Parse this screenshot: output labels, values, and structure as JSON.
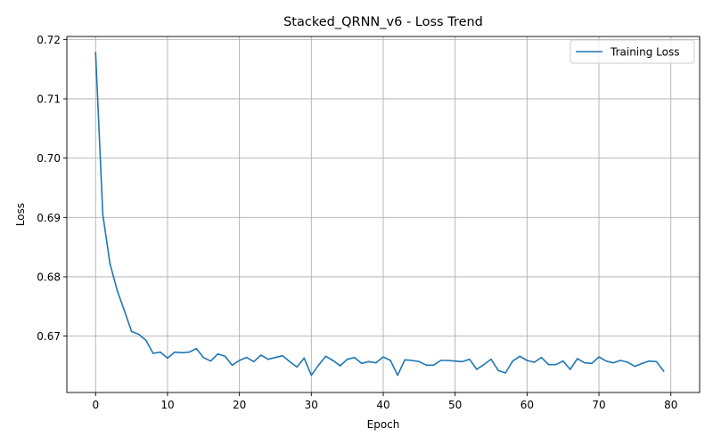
{
  "chart_data": {
    "type": "line",
    "title": "Stacked_QRNN_v6 - Loss Trend",
    "xlabel": "Epoch",
    "ylabel": "Loss",
    "xlim": [
      -4,
      84
    ],
    "ylim": [
      0.6605,
      0.7205
    ],
    "xticks": [
      0,
      10,
      20,
      30,
      40,
      50,
      60,
      70,
      80
    ],
    "xtick_labels": [
      "0",
      "10",
      "20",
      "30",
      "40",
      "50",
      "60",
      "70",
      "80"
    ],
    "yticks": [
      0.67,
      0.68,
      0.69,
      0.7,
      0.71,
      0.72
    ],
    "ytick_labels": [
      "0.67",
      "0.68",
      "0.69",
      "0.70",
      "0.71",
      "0.72"
    ],
    "grid": true,
    "legend_position": "top-right",
    "series": [
      {
        "name": "Training Loss",
        "color": "#1f77b4",
        "x": [
          0,
          1,
          2,
          3,
          4,
          5,
          6,
          7,
          8,
          9,
          10,
          11,
          12,
          13,
          14,
          15,
          16,
          17,
          18,
          19,
          20,
          21,
          22,
          23,
          24,
          25,
          26,
          27,
          28,
          29,
          30,
          31,
          32,
          33,
          34,
          35,
          36,
          37,
          38,
          39,
          40,
          41,
          42,
          43,
          44,
          45,
          46,
          47,
          48,
          49,
          50,
          51,
          52,
          53,
          54,
          55,
          56,
          57,
          58,
          59,
          60,
          61,
          62,
          63,
          64,
          65,
          66,
          67,
          68,
          69,
          70,
          71,
          72,
          73,
          74,
          75,
          76,
          77,
          78,
          79
        ],
        "values": [
          0.7178,
          0.6905,
          0.6822,
          0.6777,
          0.6743,
          0.6708,
          0.6703,
          0.6693,
          0.6671,
          0.6673,
          0.6663,
          0.6673,
          0.6672,
          0.6673,
          0.6679,
          0.6664,
          0.6658,
          0.667,
          0.6666,
          0.6651,
          0.6659,
          0.6664,
          0.6657,
          0.6668,
          0.6661,
          0.6664,
          0.6667,
          0.6657,
          0.6648,
          0.6663,
          0.6634,
          0.6651,
          0.6666,
          0.6659,
          0.665,
          0.6661,
          0.6664,
          0.6654,
          0.6657,
          0.6655,
          0.6665,
          0.6659,
          0.6634,
          0.666,
          0.6659,
          0.6657,
          0.6651,
          0.6651,
          0.6659,
          0.6659,
          0.6658,
          0.6657,
          0.6661,
          0.6644,
          0.6652,
          0.6661,
          0.6642,
          0.6638,
          0.6658,
          0.6666,
          0.6659,
          0.6656,
          0.6664,
          0.6652,
          0.6652,
          0.6658,
          0.6644,
          0.6662,
          0.6655,
          0.6654,
          0.6665,
          0.6658,
          0.6655,
          0.6659,
          0.6656,
          0.6649,
          0.6654,
          0.6658,
          0.6657,
          0.6641
        ]
      }
    ]
  }
}
